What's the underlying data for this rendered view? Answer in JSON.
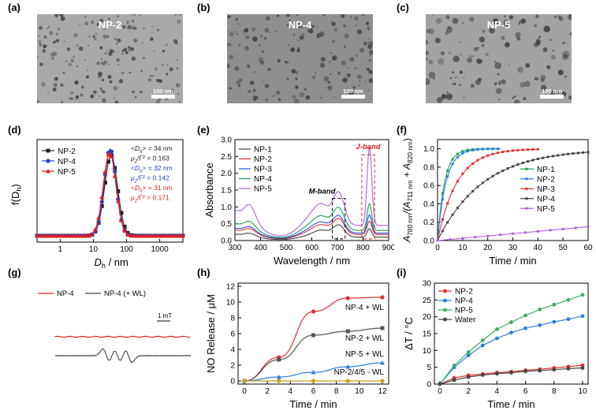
{
  "panels": {
    "a": "(a)",
    "b": "(b)",
    "c": "(c)",
    "d": "(d)",
    "e": "(e)",
    "f": "(f)",
    "g": "(g)",
    "h": "(h)",
    "i": "(i)"
  },
  "tem": [
    {
      "label": "NP-2",
      "scale": "100 nm",
      "bg": "#a9a9a9"
    },
    {
      "label": "NP-4",
      "scale": "100 nm",
      "bg": "#8f8f8f"
    },
    {
      "label": "NP-5",
      "scale": "100 nm",
      "bg": "#a3a3a3"
    }
  ],
  "chart_data": [
    {
      "id": "d",
      "type": "line",
      "xlabel_main": "D",
      "xlabel_sub": "h",
      "xlabel_rest": " / nm",
      "ylabel_main": "f(D",
      "ylabel_sub": "h",
      "ylabel_rest": ")",
      "xscale": "log",
      "xlim": [
        0.2,
        5000
      ],
      "xticks": [
        1,
        10,
        100,
        1000
      ],
      "xtick_labels": [
        "1",
        "10",
        "100",
        "1000"
      ],
      "series": [
        {
          "name": "NP-2",
          "color": "#222222",
          "marker": "square",
          "mean": 34,
          "sigma": 0.45,
          "peak": 0.93
        },
        {
          "name": "NP-4",
          "color": "#1f3fd0",
          "marker": "circle",
          "mean": 32,
          "sigma": 0.42,
          "peak": 1.0
        },
        {
          "name": "NP-5",
          "color": "#e02020",
          "marker": "triangle",
          "mean": 31,
          "sigma": 0.44,
          "peak": 0.96
        }
      ],
      "annotations": [
        {
          "pre": "<D",
          "sub": "h",
          "post": "> = 34 nm",
          "color": "#222222"
        },
        {
          "pre": "μ",
          "sub": "2",
          "post": "/Γ² = 0.163",
          "color": "#222222"
        },
        {
          "pre": "<D",
          "sub": "h",
          "post": "> = 32 nm",
          "color": "#1f3fd0"
        },
        {
          "pre": "μ",
          "sub": "2",
          "post": "/Γ² = 0.142",
          "color": "#1f3fd0"
        },
        {
          "pre": "<D",
          "sub": "h",
          "post": "> = 31 nm",
          "color": "#e02020"
        },
        {
          "pre": "μ",
          "sub": "2",
          "post": "/Γ² = 0.171",
          "color": "#e02020"
        }
      ]
    },
    {
      "id": "e",
      "type": "line",
      "xlabel": "Wavelength / nm",
      "ylabel": "Absorbance",
      "xlim": [
        300,
        900
      ],
      "ylim": [
        0,
        3.0
      ],
      "xticks": [
        300,
        400,
        500,
        600,
        700,
        800,
        900
      ],
      "yticks": [
        0.0,
        0.5,
        1.0,
        1.5,
        2.0,
        2.5,
        3.0
      ],
      "ytick_labels": [
        "0.0",
        "0.5",
        "1.0",
        "1.5",
        "2.0",
        "2.5",
        "3.0"
      ],
      "band_labels": {
        "m": "M-band",
        "j": "J-band"
      },
      "series": [
        {
          "name": "NP-1",
          "color": "#444444",
          "base": 0.1,
          "m": 0.35,
          "j": 0.25,
          "uv": 0.12
        },
        {
          "name": "NP-2",
          "color": "#e03030",
          "base": 0.18,
          "m": 0.45,
          "j": 0.4,
          "uv": 0.18
        },
        {
          "name": "NP-3",
          "color": "#2050e0",
          "base": 0.22,
          "m": 0.5,
          "j": 0.55,
          "uv": 0.2
        },
        {
          "name": "NP-4",
          "color": "#20a050",
          "base": 0.3,
          "m": 0.65,
          "j": 0.8,
          "uv": 0.28
        },
        {
          "name": "NP-5",
          "color": "#b060d8",
          "base": 0.45,
          "m": 0.95,
          "j": 2.35,
          "uv": 0.62
        }
      ]
    },
    {
      "id": "f",
      "type": "line",
      "xlabel": "Time / min",
      "ylabel_parts": [
        "A",
        "780 nm",
        "/(A",
        "711 nm",
        " + A",
        "820 nm",
        ")"
      ],
      "xlim": [
        0,
        60
      ],
      "ylim": [
        0,
        1.1
      ],
      "xticks": [
        0,
        10,
        20,
        30,
        40,
        50,
        60
      ],
      "yticks": [
        0.0,
        0.2,
        0.4,
        0.6,
        0.8,
        1.0
      ],
      "ytick_labels": [
        "0.0",
        "0.2",
        "0.4",
        "0.6",
        "0.8",
        "1.0"
      ],
      "series": [
        {
          "name": "NP-1",
          "color": "#20a050",
          "k": 0.36,
          "tmax": 25
        },
        {
          "name": "NP-2",
          "color": "#2a7ee0",
          "k": 0.3,
          "tmax": 25
        },
        {
          "name": "NP-3",
          "color": "#e03030",
          "k": 0.13,
          "tmax": 40
        },
        {
          "name": "NP-4",
          "color": "#444444",
          "k": 0.055,
          "tmax": 60
        },
        {
          "name": "NP-5",
          "color": "#b060d8",
          "k": 0.0025,
          "tmax": 60
        }
      ]
    },
    {
      "id": "g",
      "type": "epr",
      "series": [
        {
          "name": "NP-4",
          "color": "#e02020"
        },
        {
          "name": "NP-4 (+ WL)",
          "color": "#444444"
        }
      ],
      "scale_label": "1 mT"
    },
    {
      "id": "h",
      "type": "line",
      "xlabel": "Time / min",
      "ylabel": "NO Release / μM",
      "xlim": [
        0,
        12
      ],
      "ylim": [
        0,
        12
      ],
      "xticks": [
        0,
        2,
        4,
        6,
        8,
        10,
        12
      ],
      "yticks": [
        0,
        2,
        4,
        6,
        8,
        10,
        12
      ],
      "x": [
        0,
        3,
        6,
        9,
        12
      ],
      "series": [
        {
          "name": "NP-4 + WL",
          "color": "#e03030",
          "marker": "circle",
          "values": [
            0,
            3.0,
            8.8,
            10.5,
            10.6
          ]
        },
        {
          "name": "NP-2 + WL",
          "color": "#555555",
          "marker": "square",
          "values": [
            0,
            2.7,
            5.8,
            6.3,
            6.7
          ]
        },
        {
          "name": "NP-5 + WL",
          "color": "#2a7ee0",
          "marker": "triangle",
          "values": [
            0,
            0.5,
            1.1,
            1.8,
            2.3
          ]
        },
        {
          "name": "NP-2/4/5 - WL",
          "color": "#c8a020",
          "marker": "circle",
          "values": [
            0,
            0,
            0,
            0,
            0
          ]
        }
      ]
    },
    {
      "id": "i",
      "type": "line",
      "xlabel": "Time / min",
      "ylabel": "ΔT / °C",
      "xlim": [
        0,
        10
      ],
      "ylim": [
        0,
        30
      ],
      "xticks": [
        0,
        2,
        4,
        6,
        8,
        10
      ],
      "yticks": [
        0,
        5,
        10,
        15,
        20,
        25,
        30
      ],
      "x": [
        0,
        1,
        2,
        3,
        4,
        5,
        6,
        7,
        8,
        9,
        10
      ],
      "series": [
        {
          "name": "NP-2",
          "color": "#e03030",
          "values": [
            0,
            1.8,
            2.6,
            3.0,
            3.4,
            3.7,
            4.1,
            4.4,
            4.8,
            5.2,
            5.6
          ]
        },
        {
          "name": "NP-4",
          "color": "#2a7ee0",
          "values": [
            0,
            5.0,
            8.5,
            11.5,
            13.6,
            15.3,
            16.6,
            17.5,
            18.5,
            19.3,
            20.2
          ]
        },
        {
          "name": "NP-5",
          "color": "#3bb060",
          "values": [
            0,
            5.5,
            9.5,
            13.0,
            16.3,
            18.4,
            20.4,
            22.2,
            23.6,
            25.0,
            26.5
          ]
        },
        {
          "name": "Water",
          "color": "#444444",
          "values": [
            0,
            1.2,
            2.1,
            2.7,
            3.1,
            3.4,
            3.8,
            4.0,
            4.3,
            4.6,
            4.8
          ]
        }
      ]
    }
  ]
}
